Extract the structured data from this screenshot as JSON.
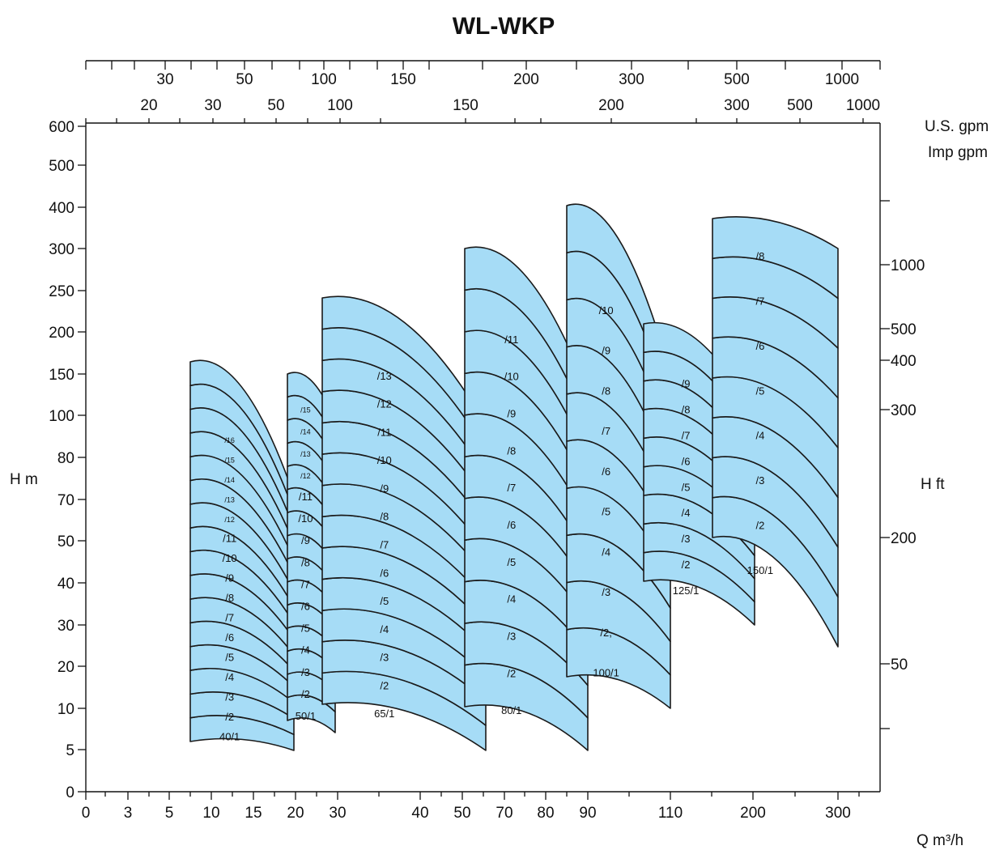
{
  "chart_data": {
    "type": "area",
    "title": "WL-WKP",
    "x_axis": {
      "label": "Q m³/h",
      "ticks": [
        "0",
        "3",
        "5",
        "10",
        "15",
        "20",
        "30",
        "40",
        "50",
        "70",
        "80",
        "90",
        "110",
        "200",
        "300"
      ],
      "tick_values": [
        0,
        3,
        5,
        10,
        15,
        20,
        30,
        40,
        50,
        70,
        80,
        90,
        110,
        200,
        300
      ]
    },
    "y_axis_left": {
      "label": "H  m",
      "ticks": [
        "0",
        "5",
        "10",
        "20",
        "30",
        "40",
        "50",
        "70",
        "80",
        "100",
        "150",
        "200",
        "250",
        "300",
        "400",
        "500",
        "600"
      ],
      "tick_values": [
        0,
        5,
        10,
        20,
        30,
        40,
        50,
        70,
        80,
        100,
        150,
        200,
        250,
        300,
        400,
        500,
        600
      ]
    },
    "y_axis_right": {
      "label": "H  ft",
      "ticks": [
        "50",
        "200",
        "300",
        "400",
        "500",
        "1000"
      ],
      "tick_values": [
        50,
        200,
        300,
        400,
        500,
        1000
      ]
    },
    "top_axis_us_gpm": {
      "label": "U.S.  gpm",
      "ticks": [
        "30",
        "50",
        "100",
        "150",
        "200",
        "300",
        "500",
        "1000"
      ]
    },
    "top_axis_imp_gpm": {
      "label": "Imp  gpm",
      "ticks": [
        "20",
        "30",
        "50",
        "100",
        "150",
        "200",
        "300",
        "500",
        "1000"
      ]
    },
    "series": [
      {
        "name": "40/1",
        "stages": [
          "40/1",
          "/2",
          "/3",
          "/4",
          "/5",
          "/6",
          "/7",
          "/8",
          "/9",
          "/10",
          "/11",
          "/12",
          "/13",
          "/14",
          "/15",
          "/16"
        ]
      },
      {
        "name": "50/1",
        "stages": [
          "50/1",
          "/2",
          "/3",
          "/4",
          "/5",
          "/6",
          "/7",
          "/8",
          "/9",
          "/10",
          "/11",
          "/12",
          "/13",
          "/14",
          "/15"
        ]
      },
      {
        "name": "65/1",
        "stages": [
          "65/1",
          "/2",
          "/3",
          "/4",
          "/5",
          "/6",
          "/7",
          "/8",
          "/9",
          "/10",
          "/11",
          "/12",
          "/13"
        ]
      },
      {
        "name": "80/1",
        "stages": [
          "80/1",
          "/2",
          "/3",
          "/4",
          "/5",
          "/6",
          "/7",
          "/8",
          "/9",
          "/10",
          "/11"
        ]
      },
      {
        "name": "100/1",
        "stages": [
          "100/1",
          "/2,",
          "/3",
          "/4",
          "/5",
          "/6",
          "/7",
          "/8",
          "/9",
          "/10"
        ]
      },
      {
        "name": "125/1",
        "stages": [
          "125/1",
          "/2",
          "/3",
          "/4",
          "/5",
          "/6",
          "/7",
          "/8",
          "/9"
        ]
      },
      {
        "name": "150/1",
        "stages": [
          "150/1",
          "/2",
          "/3",
          "/4",
          "/5",
          "/6",
          "/7",
          "/8"
        ]
      }
    ]
  },
  "colors": {
    "band_fill": "#a6dcf6",
    "band_stroke": "#1a1a1a",
    "text": "#111111"
  }
}
